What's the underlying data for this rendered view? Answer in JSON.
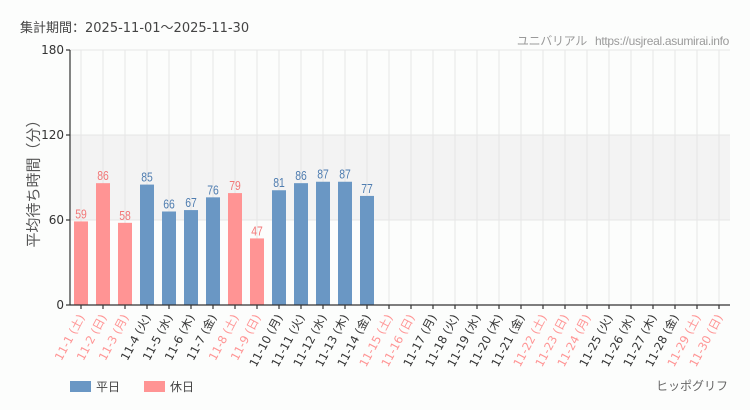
{
  "header": {
    "period_label": "集計期間：2025-11-01〜2025-11-30",
    "source_name": "ユニバリアル",
    "source_url": "https://usjreal.asumirai.info"
  },
  "legend": {
    "items": [
      {
        "label": "平日",
        "color": "#6a97c4"
      },
      {
        "label": "休日",
        "color": "#ff9494"
      }
    ]
  },
  "credit": "ヒッポグリフ",
  "colors": {
    "weekday": "#6a97c4",
    "holiday": "#ff9494",
    "weekday_label": "#4f7db0",
    "holiday_label": "#f27777",
    "axis": "#333333",
    "grid": "#e6e6e6",
    "band": "#f3f3f3"
  },
  "chart_data": {
    "type": "bar",
    "title": "集計期間：2025-11-01〜2025-11-30",
    "xlabel": "",
    "ylabel": "平均待ち時間（分）",
    "ylim": [
      0,
      180
    ],
    "yticks": [
      0,
      60,
      120,
      180
    ],
    "grid": true,
    "shaded_band": [
      60,
      120
    ],
    "legend_position": "bottom-left",
    "categories": [
      "11-1 (土)",
      "11-2 (日)",
      "11-3 (月)",
      "11-4 (火)",
      "11-5 (水)",
      "11-6 (木)",
      "11-7 (金)",
      "11-8 (土)",
      "11-9 (日)",
      "11-10 (月)",
      "11-11 (火)",
      "11-12 (水)",
      "11-13 (木)",
      "11-14 (金)",
      "11-15 (土)",
      "11-16 (日)",
      "11-17 (月)",
      "11-18 (火)",
      "11-19 (水)",
      "11-20 (木)",
      "11-21 (金)",
      "11-22 (土)",
      "11-23 (日)",
      "11-24 (月)",
      "11-25 (火)",
      "11-26 (水)",
      "11-27 (木)",
      "11-28 (金)",
      "11-29 (土)",
      "11-30 (日)"
    ],
    "day_type": [
      "holiday",
      "holiday",
      "holiday",
      "weekday",
      "weekday",
      "weekday",
      "weekday",
      "holiday",
      "holiday",
      "weekday",
      "weekday",
      "weekday",
      "weekday",
      "weekday",
      "holiday",
      "holiday",
      "weekday",
      "weekday",
      "weekday",
      "weekday",
      "weekday",
      "holiday",
      "holiday",
      "holiday",
      "weekday",
      "weekday",
      "weekday",
      "weekday",
      "holiday",
      "holiday"
    ],
    "values": [
      59,
      86,
      58,
      85,
      66,
      67,
      76,
      79,
      47,
      81,
      86,
      87,
      87,
      77,
      null,
      null,
      null,
      null,
      null,
      null,
      null,
      null,
      null,
      null,
      null,
      null,
      null,
      null,
      null,
      null
    ],
    "series": [
      {
        "name": "平日",
        "color": "#6a97c4"
      },
      {
        "name": "休日",
        "color": "#ff9494"
      }
    ]
  }
}
